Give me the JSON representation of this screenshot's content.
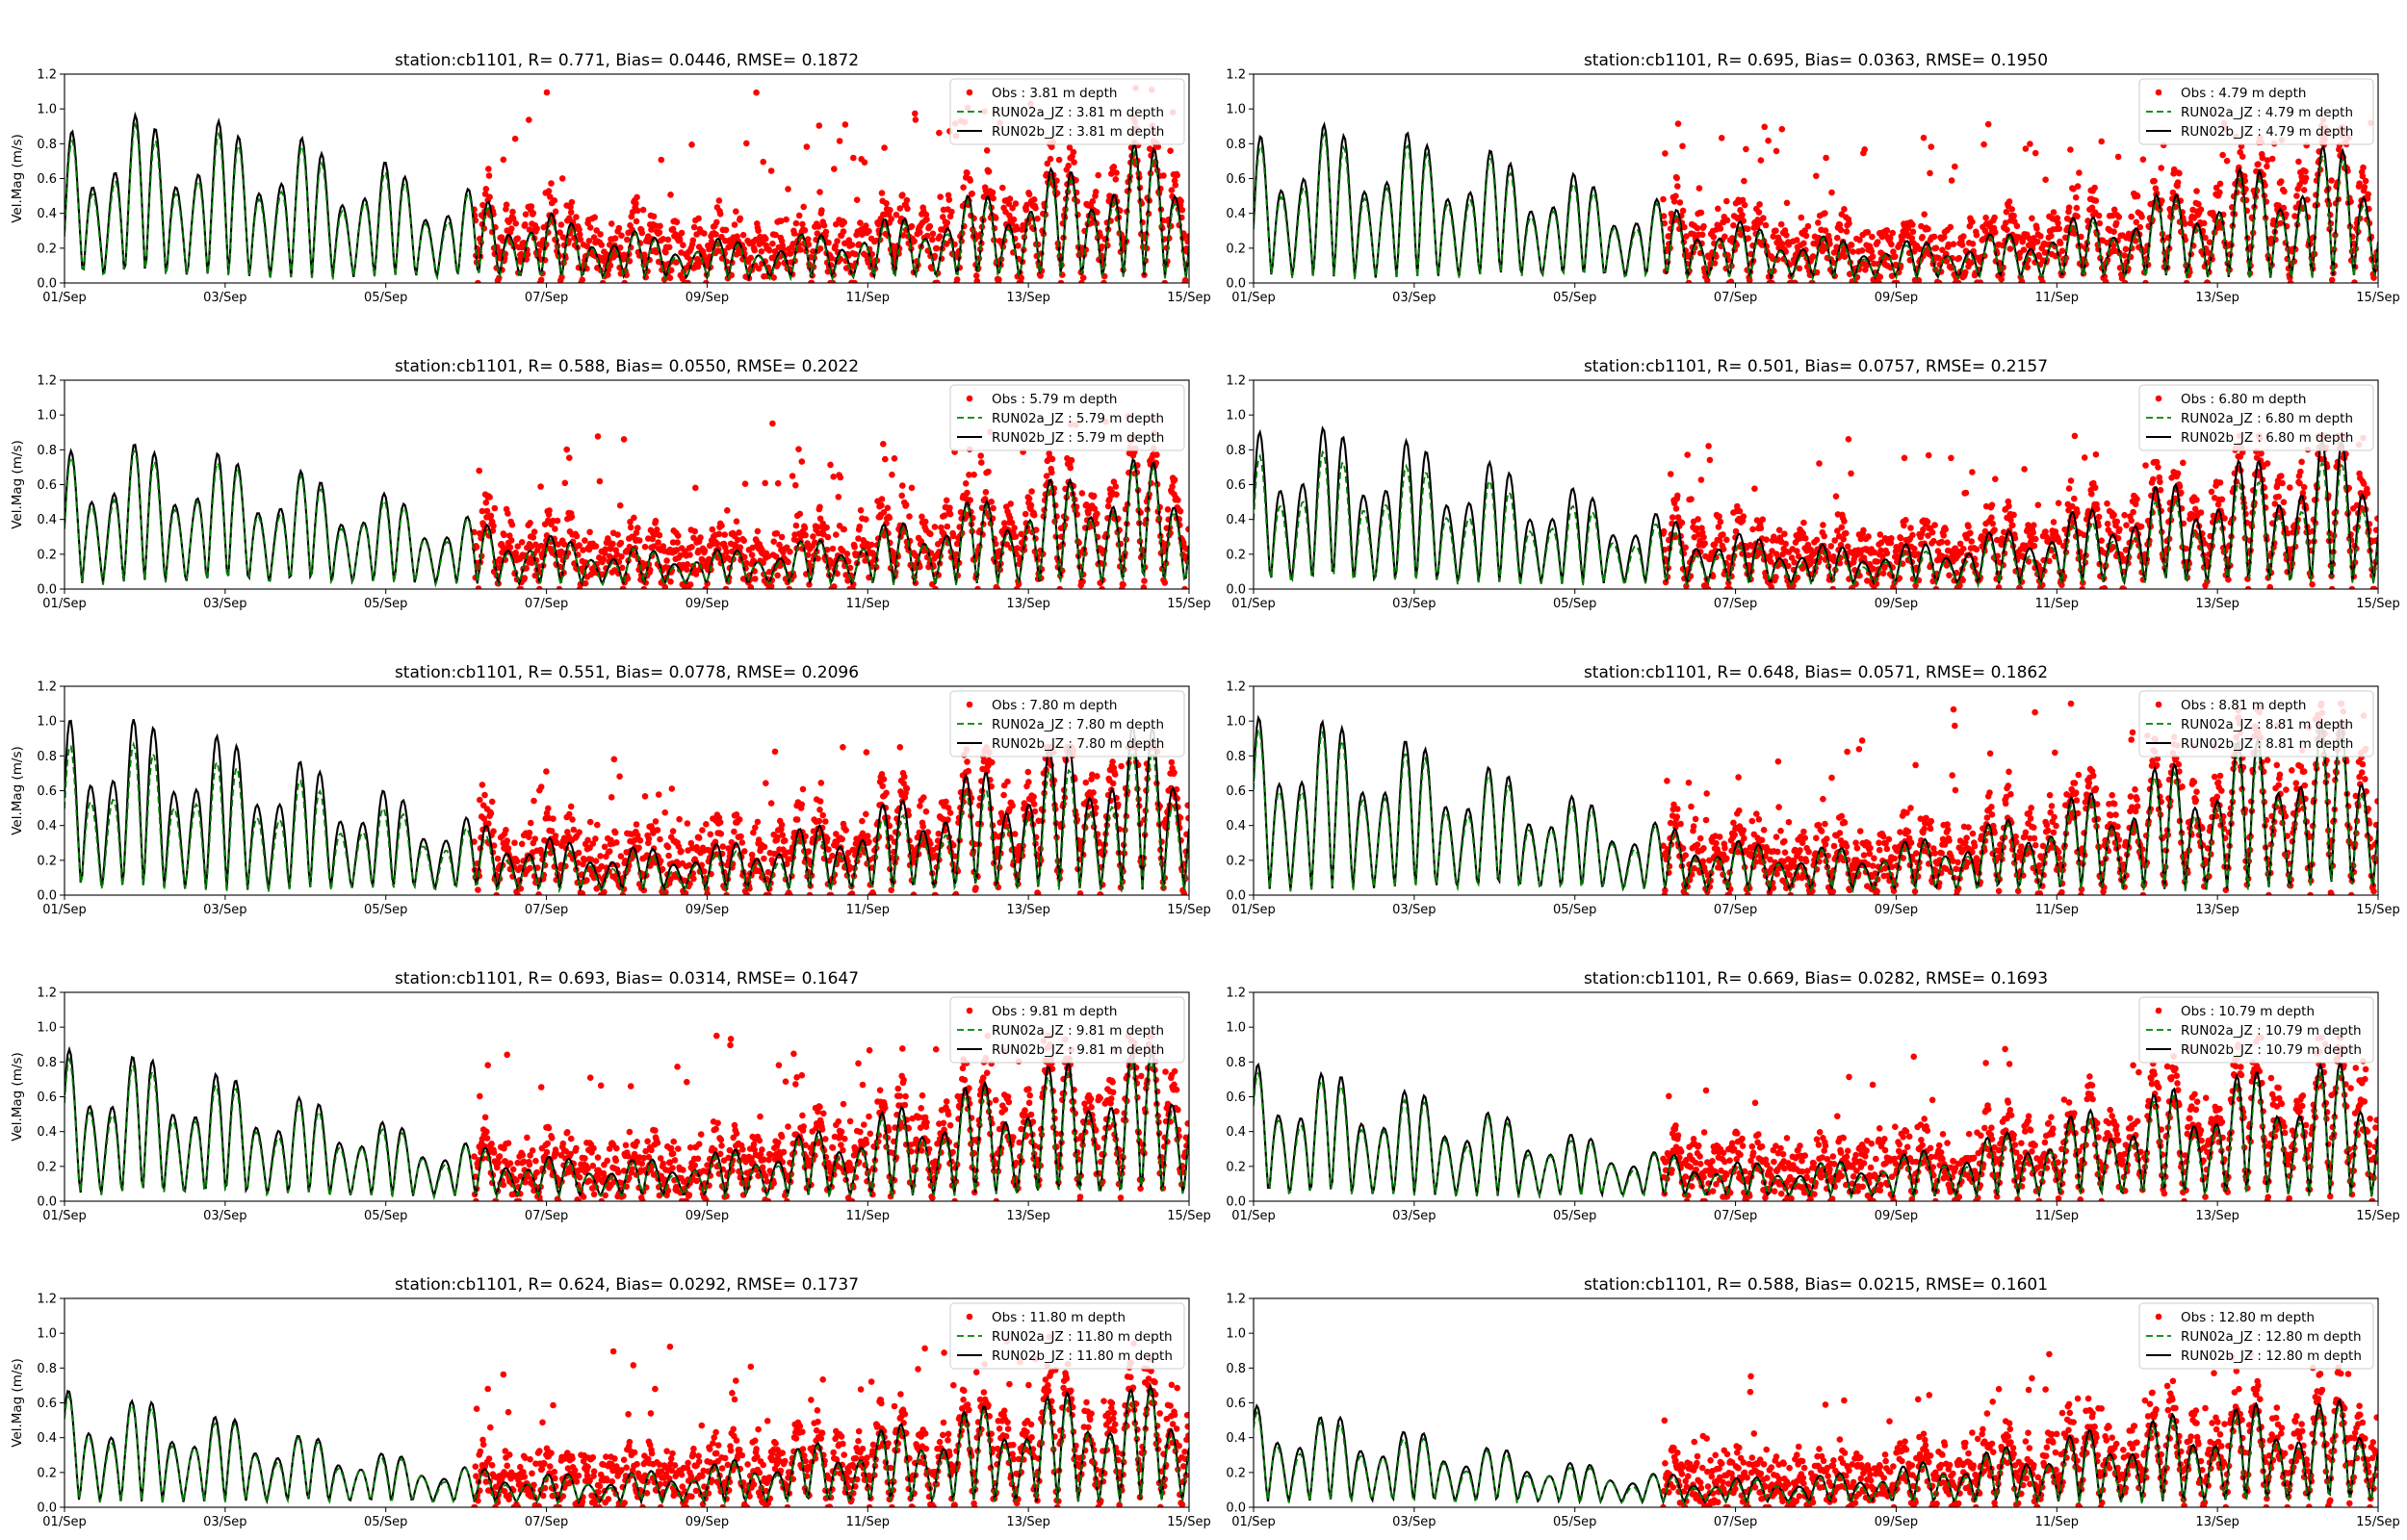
{
  "figure": {
    "ylabel": "Vel.Mag (m/s)",
    "xticks": [
      "01/Sep",
      "03/Sep",
      "05/Sep",
      "07/Sep",
      "09/Sep",
      "11/Sep",
      "13/Sep",
      "15/Sep"
    ],
    "yticks": [
      "0.0",
      "0.2",
      "0.4",
      "0.6",
      "0.8",
      "1.0",
      "1.2"
    ],
    "colors": {
      "obs": "#ff0000",
      "run02a": "#008000",
      "run02b": "#000000"
    }
  },
  "chart_data": [
    {
      "type": "line",
      "title": "station:cb1101, R= 0.771, Bias= 0.0446, RMSE= 0.1872",
      "xlabel": "",
      "ylabel": "Vel.Mag (m/s)",
      "xlim": [
        "01/Sep",
        "15/Sep"
      ],
      "ylim": [
        0.0,
        1.2
      ],
      "grid": false,
      "legend_position": "top-right",
      "series": [
        {
          "name": "Obs : 3.81 m depth",
          "style": "red dots",
          "approx_period": [
            "06/Sep",
            "15/Sep"
          ],
          "approx_peak": 1.12
        },
        {
          "name": "RUN02a_JZ : 3.81 m depth",
          "style": "green dashed",
          "approx_peak": 0.95
        },
        {
          "name": "RUN02b_JZ : 3.81 m depth",
          "style": "black solid",
          "approx_peak": 1.02
        }
      ]
    },
    {
      "type": "line",
      "title": "station:cb1101, R= 0.695, Bias= 0.0363, RMSE= 0.1950",
      "xlabel": "",
      "ylabel": "",
      "xlim": [
        "01/Sep",
        "15/Sep"
      ],
      "ylim": [
        0.0,
        1.2
      ],
      "grid": false,
      "legend_position": "top-right",
      "series": [
        {
          "name": "Obs : 4.79 m depth",
          "style": "red dots",
          "approx_period": [
            "06/Sep",
            "15/Sep"
          ],
          "approx_peak": 1.07
        },
        {
          "name": "RUN02a_JZ : 4.79 m depth",
          "style": "green dashed",
          "approx_peak": 0.9
        },
        {
          "name": "RUN02b_JZ : 4.79 m depth",
          "style": "black solid",
          "approx_peak": 0.97
        }
      ]
    },
    {
      "type": "line",
      "title": "station:cb1101, R= 0.588, Bias= 0.0550, RMSE= 0.2022",
      "xlabel": "",
      "ylabel": "Vel.Mag (m/s)",
      "xlim": [
        "01/Sep",
        "15/Sep"
      ],
      "ylim": [
        0.0,
        1.2
      ],
      "grid": false,
      "legend_position": "top-right",
      "series": [
        {
          "name": "Obs : 5.79 m depth",
          "style": "red dots",
          "approx_period": [
            "06/Sep",
            "15/Sep"
          ],
          "approx_peak": 1.0
        },
        {
          "name": "RUN02a_JZ : 5.79 m depth",
          "style": "green dashed",
          "approx_peak": 0.85
        },
        {
          "name": "RUN02b_JZ : 5.79 m depth",
          "style": "black solid",
          "approx_peak": 0.9
        }
      ]
    },
    {
      "type": "line",
      "title": "station:cb1101, R= 0.501, Bias= 0.0757, RMSE= 0.2157",
      "xlabel": "",
      "ylabel": "",
      "xlim": [
        "01/Sep",
        "15/Sep"
      ],
      "ylim": [
        0.0,
        1.2
      ],
      "grid": false,
      "legend_position": "top-right",
      "series": [
        {
          "name": "Obs : 6.80 m depth",
          "style": "red dots",
          "approx_period": [
            "06/Sep",
            "15/Sep"
          ],
          "approx_peak": 0.88
        },
        {
          "name": "RUN02a_JZ : 6.80 m depth",
          "style": "green dashed",
          "approx_peak": 0.85
        },
        {
          "name": "RUN02b_JZ : 6.80 m depth",
          "style": "black solid",
          "approx_peak": 1.01
        }
      ]
    },
    {
      "type": "line",
      "title": "station:cb1101, R= 0.551, Bias= 0.0778, RMSE= 0.2096",
      "xlabel": "",
      "ylabel": "Vel.Mag (m/s)",
      "xlim": [
        "01/Sep",
        "15/Sep"
      ],
      "ylim": [
        0.0,
        1.2
      ],
      "grid": false,
      "legend_position": "top-right",
      "series": [
        {
          "name": "Obs : 7.80 m depth",
          "style": "red dots",
          "approx_period": [
            "06/Sep",
            "15/Sep"
          ],
          "approx_peak": 0.85
        },
        {
          "name": "RUN02a_JZ : 7.80 m depth",
          "style": "green dashed",
          "approx_peak": 0.95
        },
        {
          "name": "RUN02b_JZ : 7.80 m depth",
          "style": "black solid",
          "approx_peak": 1.12
        }
      ]
    },
    {
      "type": "line",
      "title": "station:cb1101, R= 0.648, Bias= 0.0571, RMSE= 0.1862",
      "xlabel": "",
      "ylabel": "",
      "xlim": [
        "01/Sep",
        "15/Sep"
      ],
      "ylim": [
        0.0,
        1.2
      ],
      "grid": false,
      "legend_position": "top-right",
      "series": [
        {
          "name": "Obs : 8.81 m depth",
          "style": "red dots",
          "approx_period": [
            "06/Sep",
            "15/Sep"
          ],
          "approx_peak": 1.1
        },
        {
          "name": "RUN02a_JZ : 8.81 m depth",
          "style": "green dashed",
          "approx_peak": 1.05
        },
        {
          "name": "RUN02b_JZ : 8.81 m depth",
          "style": "black solid",
          "approx_peak": 1.13
        }
      ]
    },
    {
      "type": "line",
      "title": "station:cb1101, R= 0.693, Bias= 0.0314, RMSE= 0.1647",
      "xlabel": "",
      "ylabel": "Vel.Mag (m/s)",
      "xlim": [
        "01/Sep",
        "15/Sep"
      ],
      "ylim": [
        0.0,
        1.2
      ],
      "grid": false,
      "legend_position": "top-right",
      "series": [
        {
          "name": "Obs : 9.81 m depth",
          "style": "red dots",
          "approx_period": [
            "06/Sep",
            "15/Sep"
          ],
          "approx_peak": 0.95
        },
        {
          "name": "RUN02a_JZ : 9.81 m depth",
          "style": "green dashed",
          "approx_peak": 0.9
        },
        {
          "name": "RUN02b_JZ : 9.81 m depth",
          "style": "black solid",
          "approx_peak": 0.97
        }
      ]
    },
    {
      "type": "line",
      "title": "station:cb1101, R= 0.669, Bias= 0.0282, RMSE= 0.1693",
      "xlabel": "",
      "ylabel": "",
      "xlim": [
        "01/Sep",
        "15/Sep"
      ],
      "ylim": [
        0.0,
        1.2
      ],
      "grid": false,
      "legend_position": "top-right",
      "series": [
        {
          "name": "Obs : 10.79 m depth",
          "style": "red dots",
          "approx_period": [
            "06/Sep",
            "15/Sep"
          ],
          "approx_peak": 0.94
        },
        {
          "name": "RUN02a_JZ : 10.79 m depth",
          "style": "green dashed",
          "approx_peak": 0.82
        },
        {
          "name": "RUN02b_JZ : 10.79 m depth",
          "style": "black solid",
          "approx_peak": 0.88
        }
      ]
    },
    {
      "type": "line",
      "title": "station:cb1101, R= 0.624, Bias= 0.0292, RMSE= 0.1737",
      "xlabel": "",
      "ylabel": "Vel.Mag (m/s)",
      "xlim": [
        "01/Sep",
        "15/Sep"
      ],
      "ylim": [
        0.0,
        1.2
      ],
      "grid": false,
      "legend_position": "top-right",
      "series": [
        {
          "name": "Obs : 11.80 m depth",
          "style": "red dots",
          "approx_period": [
            "06/Sep",
            "15/Sep"
          ],
          "approx_peak": 0.98
        },
        {
          "name": "RUN02a_JZ : 11.80 m depth",
          "style": "green dashed",
          "approx_peak": 0.72
        },
        {
          "name": "RUN02b_JZ : 11.80 m depth",
          "style": "black solid",
          "approx_peak": 0.76
        }
      ]
    },
    {
      "type": "line",
      "title": "station:cb1101, R= 0.588, Bias= 0.0215, RMSE= 0.1601",
      "xlabel": "",
      "ylabel": "",
      "xlim": [
        "01/Sep",
        "15/Sep"
      ],
      "ylim": [
        0.0,
        1.2
      ],
      "grid": false,
      "legend_position": "top-right",
      "series": [
        {
          "name": "Obs : 12.80 m depth",
          "style": "red dots",
          "approx_period": [
            "06/Sep",
            "15/Sep"
          ],
          "approx_peak": 0.88
        },
        {
          "name": "RUN02a_JZ : 12.80 m depth",
          "style": "green dashed",
          "approx_peak": 0.62
        },
        {
          "name": "RUN02b_JZ : 12.80 m depth",
          "style": "black solid",
          "approx_peak": 0.67
        }
      ]
    }
  ]
}
